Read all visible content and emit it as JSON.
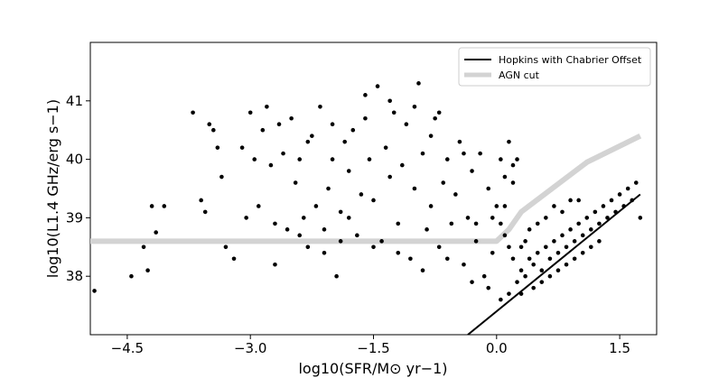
{
  "chart_data": {
    "type": "scatter",
    "xlabel": "log10(SFR/M⊙ yr−1)",
    "ylabel": "log10(L1.4 GHz/erg s−1)",
    "xlim": [
      -4.95,
      1.95
    ],
    "ylim": [
      37.0,
      42.0
    ],
    "x_ticks": [
      -4.5,
      -3.0,
      -1.5,
      0.0,
      1.5
    ],
    "x_tick_labels": [
      "−4.5",
      "−3.0",
      "−1.5",
      "0.0",
      "1.5"
    ],
    "y_ticks": [
      38,
      39,
      40,
      41
    ],
    "y_tick_labels": [
      "38",
      "39",
      "40",
      "41"
    ],
    "legend": {
      "position": "top-right",
      "entries": [
        {
          "label": "Hopkins with Chabrier Offset",
          "color": "#000000"
        },
        {
          "label": "AGN cut",
          "color": "#d3d3d3"
        }
      ]
    },
    "series": [
      {
        "name": "Hopkins with Chabrier Offset",
        "kind": "line",
        "color": "#000000",
        "x": [
          -0.35,
          1.75
        ],
        "y": [
          37.0,
          39.4
        ]
      },
      {
        "name": "AGN cut",
        "kind": "line",
        "color": "#d3d3d3",
        "x": [
          -4.95,
          0.0,
          0.15,
          0.3,
          1.1,
          1.75
        ],
        "y": [
          38.6,
          38.6,
          38.8,
          39.1,
          39.95,
          40.4
        ]
      },
      {
        "kind": "scatter",
        "color": "#000000",
        "points": [
          [
            -4.9,
            37.75
          ],
          [
            -4.45,
            38.0
          ],
          [
            -4.3,
            38.5
          ],
          [
            -4.25,
            38.1
          ],
          [
            -4.15,
            38.75
          ],
          [
            -4.2,
            39.2
          ],
          [
            -4.05,
            39.2
          ],
          [
            -3.7,
            40.8
          ],
          [
            -3.6,
            39.3
          ],
          [
            -3.5,
            40.6
          ],
          [
            -3.45,
            40.5
          ],
          [
            -3.4,
            40.2
          ],
          [
            -3.35,
            39.7
          ],
          [
            -3.3,
            38.5
          ],
          [
            -3.2,
            38.3
          ],
          [
            -3.55,
            39.1
          ],
          [
            -3.1,
            40.2
          ],
          [
            -3.05,
            39.0
          ],
          [
            -3.0,
            40.8
          ],
          [
            -2.95,
            40.0
          ],
          [
            -2.9,
            39.2
          ],
          [
            -2.85,
            40.5
          ],
          [
            -2.8,
            40.9
          ],
          [
            -2.75,
            39.9
          ],
          [
            -2.7,
            38.2
          ],
          [
            -2.65,
            40.6
          ],
          [
            -2.6,
            40.1
          ],
          [
            -2.55,
            38.8
          ],
          [
            -2.5,
            40.7
          ],
          [
            -2.45,
            39.6
          ],
          [
            -2.4,
            40.0
          ],
          [
            -2.35,
            39.0
          ],
          [
            -2.3,
            38.5
          ],
          [
            -2.25,
            40.4
          ],
          [
            -2.2,
            39.2
          ],
          [
            -2.15,
            40.9
          ],
          [
            -2.1,
            38.8
          ],
          [
            -2.05,
            39.5
          ],
          [
            -2.0,
            40.6
          ],
          [
            -1.95,
            38.0
          ],
          [
            -1.9,
            39.1
          ],
          [
            -1.85,
            40.3
          ],
          [
            -1.8,
            39.8
          ],
          [
            -1.75,
            40.5
          ],
          [
            -1.7,
            38.7
          ],
          [
            -1.65,
            39.4
          ],
          [
            -1.6,
            41.1
          ],
          [
            -1.55,
            40.0
          ],
          [
            -1.5,
            39.3
          ],
          [
            -1.45,
            41.25
          ],
          [
            -1.4,
            38.6
          ],
          [
            -1.35,
            40.2
          ],
          [
            -1.3,
            39.7
          ],
          [
            -1.25,
            40.8
          ],
          [
            -1.2,
            38.9
          ],
          [
            -1.15,
            39.9
          ],
          [
            -1.1,
            40.6
          ],
          [
            -1.05,
            38.3
          ],
          [
            -1.0,
            39.5
          ],
          [
            -0.95,
            41.3
          ],
          [
            -0.9,
            40.1
          ],
          [
            -0.85,
            38.8
          ],
          [
            -0.8,
            39.2
          ],
          [
            -0.75,
            40.7
          ],
          [
            -0.7,
            38.5
          ],
          [
            -0.65,
            39.6
          ],
          [
            -0.6,
            40.0
          ],
          [
            -0.55,
            38.9
          ],
          [
            -0.5,
            39.4
          ],
          [
            -0.45,
            40.3
          ],
          [
            -0.4,
            38.2
          ],
          [
            -0.35,
            39.0
          ],
          [
            -0.3,
            39.8
          ],
          [
            -0.25,
            38.6
          ],
          [
            -0.2,
            40.1
          ],
          [
            -0.15,
            38.0
          ],
          [
            -0.1,
            39.5
          ],
          [
            -0.05,
            38.4
          ],
          [
            0.0,
            39.2
          ],
          [
            0.05,
            40.0
          ],
          [
            0.1,
            38.7
          ],
          [
            0.2,
            39.6
          ],
          [
            -0.25,
            38.9
          ],
          [
            -0.1,
            37.8
          ],
          [
            -0.3,
            37.9
          ],
          [
            0.15,
            38.5
          ],
          [
            0.05,
            37.6
          ],
          [
            0.15,
            37.7
          ],
          [
            0.25,
            37.9
          ],
          [
            0.3,
            38.1
          ],
          [
            0.35,
            38.0
          ],
          [
            0.4,
            38.3
          ],
          [
            0.45,
            38.2
          ],
          [
            0.5,
            38.4
          ],
          [
            0.55,
            38.1
          ],
          [
            0.6,
            38.5
          ],
          [
            0.65,
            38.3
          ],
          [
            0.7,
            38.6
          ],
          [
            0.75,
            38.4
          ],
          [
            0.8,
            38.7
          ],
          [
            0.85,
            38.5
          ],
          [
            0.9,
            38.8
          ],
          [
            0.95,
            38.6
          ],
          [
            1.0,
            38.9
          ],
          [
            1.05,
            38.7
          ],
          [
            1.1,
            39.0
          ],
          [
            1.15,
            38.8
          ],
          [
            1.2,
            39.1
          ],
          [
            1.25,
            38.9
          ],
          [
            1.3,
            39.2
          ],
          [
            1.35,
            39.0
          ],
          [
            1.4,
            39.3
          ],
          [
            1.45,
            39.1
          ],
          [
            1.5,
            39.4
          ],
          [
            1.55,
            39.2
          ],
          [
            1.6,
            39.5
          ],
          [
            1.65,
            39.3
          ],
          [
            1.7,
            39.6
          ],
          [
            1.75,
            39.0
          ],
          [
            0.3,
            38.5
          ],
          [
            0.4,
            38.8
          ],
          [
            0.5,
            38.9
          ],
          [
            0.6,
            39.0
          ],
          [
            0.7,
            39.2
          ],
          [
            0.8,
            39.1
          ],
          [
            0.9,
            39.3
          ],
          [
            1.0,
            39.3
          ],
          [
            0.2,
            38.3
          ],
          [
            0.35,
            38.6
          ],
          [
            0.3,
            37.7
          ],
          [
            0.45,
            37.8
          ],
          [
            0.55,
            37.9
          ],
          [
            0.65,
            38.0
          ],
          [
            0.75,
            38.1
          ],
          [
            0.85,
            38.2
          ],
          [
            0.95,
            38.3
          ],
          [
            1.05,
            38.4
          ],
          [
            1.15,
            38.5
          ],
          [
            1.25,
            38.6
          ],
          [
            0.1,
            39.7
          ],
          [
            0.2,
            39.9
          ],
          [
            0.25,
            40.0
          ],
          [
            0.15,
            40.3
          ],
          [
            0.05,
            38.9
          ],
          [
            -0.05,
            39.0
          ],
          [
            0.1,
            39.2
          ],
          [
            -1.8,
            39.0
          ],
          [
            -2.1,
            38.4
          ],
          [
            -2.7,
            38.9
          ],
          [
            -1.2,
            38.4
          ],
          [
            -0.6,
            38.3
          ],
          [
            -0.9,
            38.1
          ],
          [
            -1.5,
            38.5
          ],
          [
            -1.9,
            38.6
          ],
          [
            -2.4,
            38.7
          ],
          [
            -1.0,
            40.9
          ],
          [
            -1.6,
            40.7
          ],
          [
            -2.3,
            40.3
          ],
          [
            -0.8,
            40.4
          ],
          [
            -0.4,
            40.1
          ],
          [
            -1.3,
            41.0
          ],
          [
            -2.0,
            40.0
          ],
          [
            -0.7,
            40.8
          ]
        ]
      }
    ]
  }
}
